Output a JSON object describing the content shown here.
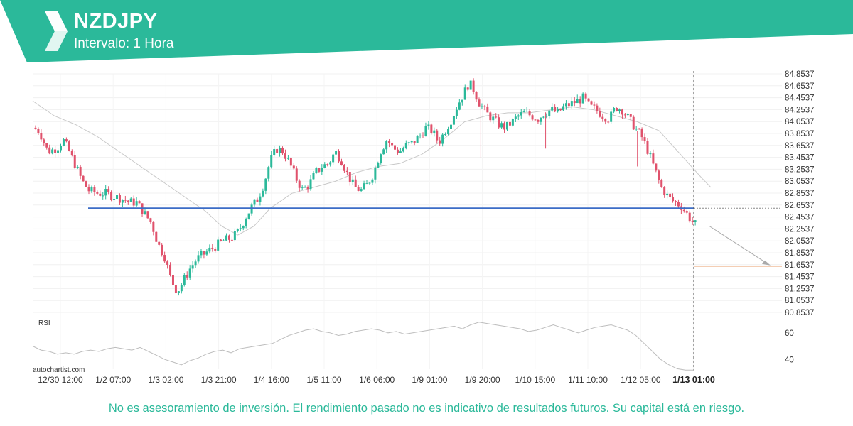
{
  "header": {
    "title": "NZDJPY",
    "subtitle": "Intervalo: 1 Hora",
    "bg_color": "#2bb99a"
  },
  "logo": {
    "icon": "autochartist-logo"
  },
  "watermark": "autochartist.com",
  "disclaimer": "No es asesoramiento de inversión. El rendimiento pasado no es indicativo de resultados futuros. Su capital está en riesgo.",
  "chart_data": {
    "type": "candlestick",
    "symbol": "NZDJPY",
    "interval": "1 Hora",
    "y_ticks": [
      "84.8537",
      "84.6537",
      "84.4537",
      "84.2537",
      "84.0537",
      "83.8537",
      "83.6537",
      "83.4537",
      "83.2537",
      "83.0537",
      "82.8537",
      "82.6537",
      "82.4537",
      "82.2537",
      "82.0537",
      "81.8537",
      "81.6537",
      "81.4537",
      "81.2537",
      "81.0537",
      "80.8537"
    ],
    "ylim": [
      80.8537,
      84.8537
    ],
    "x_ticks": [
      "12/30 12:00",
      "1/2 07:00",
      "1/3 02:00",
      "1/3 21:00",
      "1/4 16:00",
      "1/5 11:00",
      "1/6 06:00",
      "1/9 01:00",
      "1/9 20:00",
      "1/10 15:00",
      "1/11 10:00",
      "1/12 05:00",
      "1/13 01:00"
    ],
    "highlighted_x": "1/13 01:00",
    "price_path": [
      [
        0,
        83.95
      ],
      [
        6,
        83.9
      ],
      [
        14,
        83.55
      ],
      [
        22,
        83.6
      ],
      [
        28,
        83.75
      ],
      [
        34,
        83.55
      ],
      [
        40,
        83.3
      ],
      [
        46,
        83.05
      ],
      [
        52,
        82.9
      ],
      [
        60,
        82.85
      ],
      [
        68,
        82.85
      ],
      [
        76,
        82.8
      ],
      [
        84,
        82.75
      ],
      [
        90,
        82.7
      ],
      [
        96,
        82.7
      ],
      [
        100,
        82.6
      ],
      [
        106,
        82.45
      ],
      [
        110,
        82.35
      ],
      [
        116,
        82.0
      ],
      [
        122,
        81.8
      ],
      [
        128,
        81.4
      ],
      [
        134,
        81.2
      ],
      [
        140,
        81.4
      ],
      [
        146,
        81.6
      ],
      [
        152,
        81.75
      ],
      [
        160,
        81.85
      ],
      [
        168,
        81.95
      ],
      [
        176,
        82.05
      ],
      [
        184,
        82.1
      ],
      [
        190,
        82.2
      ],
      [
        196,
        82.4
      ],
      [
        202,
        82.6
      ],
      [
        208,
        82.75
      ],
      [
        214,
        83.0
      ],
      [
        220,
        83.4
      ],
      [
        226,
        83.6
      ],
      [
        232,
        83.55
      ],
      [
        238,
        83.35
      ],
      [
        244,
        83.1
      ],
      [
        250,
        82.9
      ],
      [
        256,
        83.0
      ],
      [
        262,
        83.2
      ],
      [
        268,
        83.3
      ],
      [
        274,
        83.35
      ],
      [
        280,
        83.55
      ],
      [
        286,
        83.4
      ],
      [
        292,
        83.15
      ],
      [
        298,
        82.95
      ],
      [
        304,
        82.9
      ],
      [
        310,
        83.0
      ],
      [
        316,
        83.2
      ],
      [
        322,
        83.55
      ],
      [
        328,
        83.75
      ],
      [
        334,
        83.6
      ],
      [
        340,
        83.55
      ],
      [
        346,
        83.65
      ],
      [
        352,
        83.7
      ],
      [
        358,
        83.8
      ],
      [
        364,
        83.95
      ],
      [
        370,
        83.9
      ],
      [
        376,
        83.7
      ],
      [
        382,
        83.9
      ],
      [
        388,
        84.1
      ],
      [
        394,
        84.35
      ],
      [
        400,
        84.55
      ],
      [
        404,
        84.7
      ],
      [
        408,
        84.6
      ],
      [
        414,
        84.35
      ],
      [
        420,
        84.2
      ],
      [
        426,
        84.1
      ],
      [
        432,
        84.0
      ],
      [
        438,
        83.95
      ],
      [
        444,
        84.05
      ],
      [
        450,
        84.15
      ],
      [
        456,
        84.2
      ],
      [
        462,
        84.15
      ],
      [
        468,
        84.1
      ],
      [
        474,
        84.2
      ],
      [
        480,
        84.25
      ],
      [
        486,
        84.2
      ],
      [
        492,
        84.3
      ],
      [
        498,
        84.35
      ],
      [
        504,
        84.4
      ],
      [
        510,
        84.45
      ],
      [
        516,
        84.3
      ],
      [
        522,
        84.25
      ],
      [
        528,
        84.15
      ],
      [
        534,
        84.1
      ],
      [
        540,
        84.3
      ],
      [
        546,
        84.25
      ],
      [
        552,
        84.1
      ],
      [
        558,
        83.95
      ],
      [
        564,
        83.8
      ],
      [
        570,
        83.55
      ],
      [
        576,
        83.25
      ],
      [
        582,
        82.95
      ],
      [
        588,
        82.8
      ],
      [
        594,
        82.7
      ],
      [
        600,
        82.65
      ],
      [
        606,
        82.5
      ],
      [
        612,
        82.35
      ],
      [
        616,
        82.3
      ]
    ],
    "price_spikes": [
      [
        415,
        83.45
      ],
      [
        475,
        83.6
      ],
      [
        560,
        83.3
      ]
    ],
    "moving_average": [
      [
        0,
        84.4
      ],
      [
        20,
        84.15
      ],
      [
        40,
        84.0
      ],
      [
        60,
        83.8
      ],
      [
        80,
        83.55
      ],
      [
        100,
        83.3
      ],
      [
        120,
        83.05
      ],
      [
        140,
        82.8
      ],
      [
        160,
        82.55
      ],
      [
        175,
        82.3
      ],
      [
        190,
        82.15
      ],
      [
        205,
        82.3
      ],
      [
        220,
        82.6
      ],
      [
        240,
        82.85
      ],
      [
        260,
        82.95
      ],
      [
        280,
        83.05
      ],
      [
        300,
        83.2
      ],
      [
        320,
        83.3
      ],
      [
        340,
        83.35
      ],
      [
        360,
        83.5
      ],
      [
        380,
        83.75
      ],
      [
        400,
        84.05
      ],
      [
        420,
        84.15
      ],
      [
        440,
        84.2
      ],
      [
        460,
        84.2
      ],
      [
        480,
        84.25
      ],
      [
        500,
        84.3
      ],
      [
        520,
        84.25
      ],
      [
        540,
        84.15
      ],
      [
        560,
        84.05
      ],
      [
        580,
        83.9
      ],
      [
        600,
        83.5
      ],
      [
        620,
        83.1
      ],
      [
        628,
        82.95
      ]
    ],
    "support_level": 82.6,
    "support_line_color": "#3b6cc6",
    "target_level": 81.63,
    "target_line_color": "#e07b39",
    "forecast_arrow": {
      "from_value": 82.3,
      "to_value": 81.63
    },
    "up_color": "#2bb99a",
    "down_color": "#e0526c",
    "rsi": {
      "label": "RSI",
      "ticks": [
        "60",
        "40"
      ],
      "ylim": [
        30,
        70
      ],
      "values": [
        50,
        47,
        46,
        44,
        45,
        44,
        46,
        47,
        46,
        48,
        49,
        48,
        47,
        49,
        46,
        43,
        40,
        38,
        36,
        39,
        41,
        44,
        46,
        47,
        45,
        48,
        49,
        50,
        51,
        52,
        55,
        58,
        60,
        62,
        63,
        61,
        60,
        58,
        59,
        61,
        62,
        63,
        62,
        60,
        61,
        59,
        60,
        61,
        62,
        63,
        64,
        65,
        63,
        66,
        68,
        67,
        66,
        65,
        64,
        63,
        61,
        62,
        64,
        66,
        64,
        62,
        60,
        62,
        64,
        65,
        66,
        64,
        62,
        58,
        52,
        46,
        40,
        36,
        33,
        32,
        32
      ]
    }
  }
}
